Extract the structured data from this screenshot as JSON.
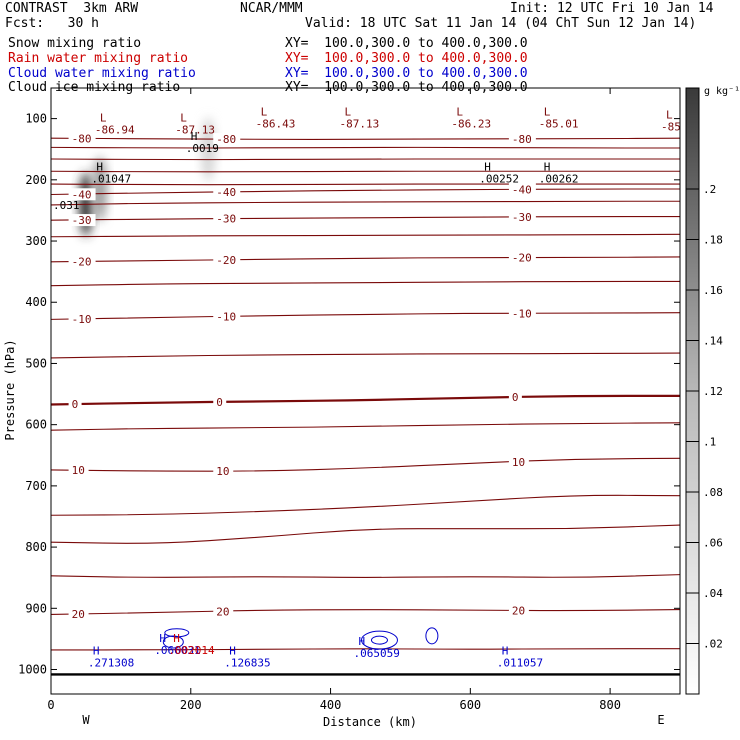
{
  "header": {
    "model": "CONTRAST  3km ARW",
    "center": "NCAR/MMM",
    "init": "Init: 12 UTC Fri 10 Jan 14",
    "fcst": "Fcst:   30 h",
    "valid": "Valid: 18 UTC Sat 11 Jan 14 (04 ChT Sun 12 Jan 14)"
  },
  "fields": [
    {
      "name": "Snow mixing ratio",
      "xy": "XY=  100.0,300.0 to 400.0,300.0",
      "color": "#000000"
    },
    {
      "name": "Rain water mixing ratio",
      "xy": "XY=  100.0,300.0 to 400.0,300.0",
      "color": "#cc0000"
    },
    {
      "name": "Cloud water mixing ratio",
      "xy": "XY=  100.0,300.0 to 400.0,300.0",
      "color": "#0000cc"
    },
    {
      "name": "Cloud ice mixing ratio",
      "xy": "XY=  100.0,300.0 to 400.0,300.0",
      "color": "#000000"
    }
  ],
  "chart_data": {
    "type": "contour",
    "xlabel": "Distance (km)",
    "ylabel": "Pressure (hPa)",
    "xlim": [
      0,
      900
    ],
    "ylim": [
      50,
      1040
    ],
    "x_ticks": [
      0,
      200,
      400,
      600,
      800
    ],
    "y_ticks": [
      100,
      200,
      300,
      400,
      500,
      600,
      700,
      800,
      900,
      1000
    ],
    "x_end_labels": {
      "left": "W",
      "right": "E"
    },
    "colorbar": {
      "unit": "g kg⁻¹",
      "ticks": [
        ".02",
        ".04",
        ".06",
        ".08",
        ".1",
        ".12",
        ".14",
        ".16",
        ".18",
        ".2"
      ],
      "values": [
        0.02,
        0.04,
        0.06,
        0.08,
        0.1,
        0.12,
        0.14,
        0.16,
        0.18,
        0.2
      ],
      "max": 0.24
    },
    "temperature_contours": [
      {
        "value": -80,
        "label": "-80",
        "p": [
          132,
          133,
          134,
          134,
          133,
          133,
          132
        ]
      },
      {
        "value": -70,
        "label": "",
        "p": [
          147,
          148,
          148,
          147,
          147,
          148,
          148
        ]
      },
      {
        "value": -60,
        "label": "",
        "p": [
          166,
          167,
          167,
          166,
          166,
          166,
          166
        ]
      },
      {
        "value": -50,
        "label": "",
        "p": [
          186,
          187,
          187,
          186,
          186,
          186,
          186
        ]
      },
      {
        "value": -45,
        "label": "",
        "p": [
          207,
          208,
          208,
          207,
          207,
          207,
          207
        ]
      },
      {
        "value": -40,
        "label": "-40",
        "p": [
          224,
          221,
          219,
          217,
          216,
          215,
          215
        ]
      },
      {
        "value": -35,
        "label": "",
        "p": [
          241,
          238,
          237,
          236,
          236,
          235,
          235
        ]
      },
      {
        "value": -30,
        "label": "-30",
        "p": [
          266,
          264,
          263,
          262,
          261,
          260,
          260
        ]
      },
      {
        "value": -25,
        "label": "",
        "p": [
          293,
          292,
          291,
          291,
          290,
          290,
          289
        ]
      },
      {
        "value": -20,
        "label": "-20",
        "p": [
          334,
          332,
          330,
          328,
          327,
          327,
          326
        ]
      },
      {
        "value": -15,
        "label": "",
        "p": [
          373,
          370,
          369,
          368,
          367,
          366,
          366
        ]
      },
      {
        "value": -10,
        "label": "-10",
        "p": [
          428,
          425,
          422,
          420,
          418,
          418,
          417
        ]
      },
      {
        "value": -5,
        "label": "",
        "p": [
          491,
          488,
          486,
          485,
          484,
          484,
          483
        ]
      },
      {
        "value": 0,
        "label": "0",
        "p": [
          567,
          564,
          562,
          560,
          556,
          553,
          553
        ]
      },
      {
        "value": 5,
        "label": "",
        "p": [
          609,
          606,
          605,
          603,
          600,
          598,
          597
        ]
      },
      {
        "value": 10,
        "label": "10",
        "p": [
          674,
          676,
          676,
          671,
          663,
          656,
          655
        ]
      },
      {
        "value": 15,
        "label": "",
        "p": [
          748,
          747,
          742,
          735,
          725,
          715,
          716
        ]
      },
      {
        "value": 17,
        "label": "",
        "p": [
          792,
          795,
          784,
          770,
          770,
          770,
          764
        ]
      },
      {
        "value": 18,
        "label": "",
        "p": [
          847,
          850,
          848,
          850,
          848,
          850,
          845
        ]
      },
      {
        "value": 20,
        "label": "20",
        "p": [
          910,
          907,
          903,
          902,
          903,
          904,
          902
        ]
      },
      {
        "value": 22,
        "label": "",
        "p": [
          968,
          968,
          967,
          966,
          967,
          966,
          966
        ]
      }
    ],
    "extrema": [
      {
        "type": "L",
        "value": "-86.94",
        "x": 70,
        "p": 110,
        "color": "#7a0a0a"
      },
      {
        "type": "L",
        "value": "-87.13",
        "x": 185,
        "p": 110,
        "color": "#7a0a0a"
      },
      {
        "type": "L",
        "value": "-86.43",
        "x": 300,
        "p": 100,
        "color": "#7a0a0a"
      },
      {
        "type": "L",
        "value": "-87.13",
        "x": 420,
        "p": 100,
        "color": "#7a0a0a"
      },
      {
        "type": "L",
        "value": "-86.23",
        "x": 580,
        "p": 100,
        "color": "#7a0a0a"
      },
      {
        "type": "L",
        "value": "-85.01",
        "x": 705,
        "p": 100,
        "color": "#7a0a0a"
      },
      {
        "type": "L",
        "value": "-85",
        "x": 880,
        "p": 105,
        "color": "#7a0a0a"
      },
      {
        "type": "H",
        "value": ".0019",
        "x": 200,
        "p": 140,
        "color": "#000000"
      },
      {
        "type": "H",
        "value": ".01047",
        "x": 65,
        "p": 190,
        "color": "#000000"
      },
      {
        "type": "H",
        "value": ".00252",
        "x": 620,
        "p": 190,
        "color": "#000000"
      },
      {
        "type": "H",
        "value": ".00262",
        "x": 705,
        "p": 190,
        "color": "#000000"
      },
      {
        "type": "",
        "value": ".031",
        "x": 10,
        "p": 233,
        "color": "#000000"
      },
      {
        "type": "H",
        "value": ".271308",
        "x": 60,
        "p": 980,
        "color": "#0000cc"
      },
      {
        "type": "H",
        "value": ".066031",
        "x": 155,
        "p": 960,
        "color": "#0000cc"
      },
      {
        "type": "H",
        "value": ".002014",
        "x": 175,
        "p": 960,
        "color": "#cc0000"
      },
      {
        "type": "H",
        "value": ".126835",
        "x": 255,
        "p": 980,
        "color": "#0000cc"
      },
      {
        "type": "H",
        "value": ".065059",
        "x": 440,
        "p": 965,
        "color": "#0000cc"
      },
      {
        "type": "H",
        "value": ".011057",
        "x": 645,
        "p": 980,
        "color": "#0000cc"
      }
    ],
    "snow_shading": [
      {
        "x": 50,
        "p": 240,
        "peak": 0.24
      },
      {
        "x": 70,
        "p": 215,
        "peak": 0.12
      },
      {
        "x": 225,
        "p": 150,
        "peak": 0.05
      }
    ]
  }
}
